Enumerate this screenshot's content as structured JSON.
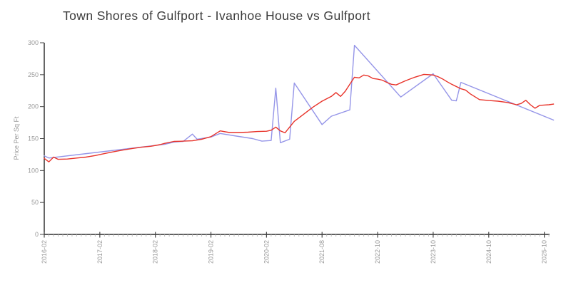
{
  "chart_data": {
    "type": "line",
    "title": "Town Shores of Gulfport - Ivanhoe House vs Gulfport",
    "ylabel": "Price Per Sq Ft",
    "xlabel": "",
    "ylim": [
      0,
      300
    ],
    "y_ticks": [
      0,
      50,
      100,
      150,
      200,
      250,
      300
    ],
    "x_tick_labels": [
      "2016-02",
      "2017-02",
      "2018-02",
      "2019-02",
      "2020-02",
      "2021-08",
      "2022-10",
      "2023-10",
      "2024-10",
      "2025-10"
    ],
    "x_tick_indices": [
      0,
      12,
      24,
      36,
      48,
      60,
      72,
      84,
      96,
      108
    ],
    "x_index_max": 110,
    "grid": false,
    "legend": "none",
    "axis_color": "#000000",
    "major_tick_color": "#444444",
    "minor_tick_color": "#bbbbbb",
    "tick_label_color": "#999999",
    "title_color": "#3b3b3b",
    "series": [
      {
        "name": "Ivanhoe House",
        "color": "#9595e8",
        "points": [
          [
            0,
            123
          ],
          [
            1,
            119.5
          ],
          [
            26,
            141
          ],
          [
            28,
            144.5
          ],
          [
            30,
            145.5
          ],
          [
            32,
            157
          ],
          [
            33,
            149
          ],
          [
            36,
            152.5
          ],
          [
            38,
            158
          ],
          [
            41,
            154.5
          ],
          [
            45,
            150
          ],
          [
            47,
            146
          ],
          [
            49,
            147
          ],
          [
            50,
            229
          ],
          [
            51,
            143.5
          ],
          [
            53,
            149
          ],
          [
            54,
            237
          ],
          [
            60,
            172
          ],
          [
            62,
            185
          ],
          [
            66,
            195
          ],
          [
            67,
            296
          ],
          [
            77,
            215
          ],
          [
            84,
            251.5
          ],
          [
            88,
            210
          ],
          [
            89,
            209
          ],
          [
            90,
            238
          ],
          [
            110,
            179
          ]
        ]
      },
      {
        "name": "Gulfport",
        "color": "#e8332a",
        "points": [
          [
            0,
            119
          ],
          [
            1,
            113.5
          ],
          [
            2,
            121
          ],
          [
            3,
            117.5
          ],
          [
            5,
            118
          ],
          [
            7,
            119.5
          ],
          [
            9,
            121
          ],
          [
            11,
            123.5
          ],
          [
            13,
            126.5
          ],
          [
            15,
            129.5
          ],
          [
            17,
            132
          ],
          [
            19,
            134.5
          ],
          [
            21,
            136.5
          ],
          [
            23,
            138
          ],
          [
            25,
            140.5
          ],
          [
            26,
            142.5
          ],
          [
            28,
            145.5
          ],
          [
            30,
            146
          ],
          [
            32,
            146.5
          ],
          [
            34,
            149
          ],
          [
            36,
            153
          ],
          [
            38,
            162
          ],
          [
            40,
            159.5
          ],
          [
            42,
            159.5
          ],
          [
            44,
            160
          ],
          [
            46,
            161
          ],
          [
            48,
            161.5
          ],
          [
            49,
            163
          ],
          [
            50,
            168
          ],
          [
            51,
            162
          ],
          [
            52,
            159
          ],
          [
            54,
            177
          ],
          [
            56,
            188
          ],
          [
            58,
            199
          ],
          [
            60,
            208.5
          ],
          [
            62,
            216
          ],
          [
            63,
            222
          ],
          [
            64,
            216
          ],
          [
            65,
            224
          ],
          [
            66,
            235
          ],
          [
            67,
            246
          ],
          [
            68,
            245
          ],
          [
            69,
            249.5
          ],
          [
            70,
            248
          ],
          [
            71,
            244
          ],
          [
            72,
            243
          ],
          [
            73,
            241.5
          ],
          [
            74,
            238
          ],
          [
            75,
            235
          ],
          [
            76,
            234
          ],
          [
            78,
            240.5
          ],
          [
            80,
            246
          ],
          [
            82,
            250.5
          ],
          [
            83,
            250
          ],
          [
            84,
            249.5
          ],
          [
            85,
            247
          ],
          [
            86,
            243.5
          ],
          [
            87,
            239
          ],
          [
            88,
            235
          ],
          [
            90,
            228
          ],
          [
            91,
            226
          ],
          [
            92,
            220
          ],
          [
            94,
            211
          ],
          [
            96,
            209.5
          ],
          [
            98,
            208.5
          ],
          [
            100,
            206.5
          ],
          [
            102,
            203
          ],
          [
            103,
            205
          ],
          [
            104,
            210
          ],
          [
            105,
            203
          ],
          [
            106,
            197.5
          ],
          [
            107,
            202
          ],
          [
            108,
            202.5
          ],
          [
            109,
            203
          ],
          [
            110,
            204
          ]
        ]
      }
    ]
  }
}
